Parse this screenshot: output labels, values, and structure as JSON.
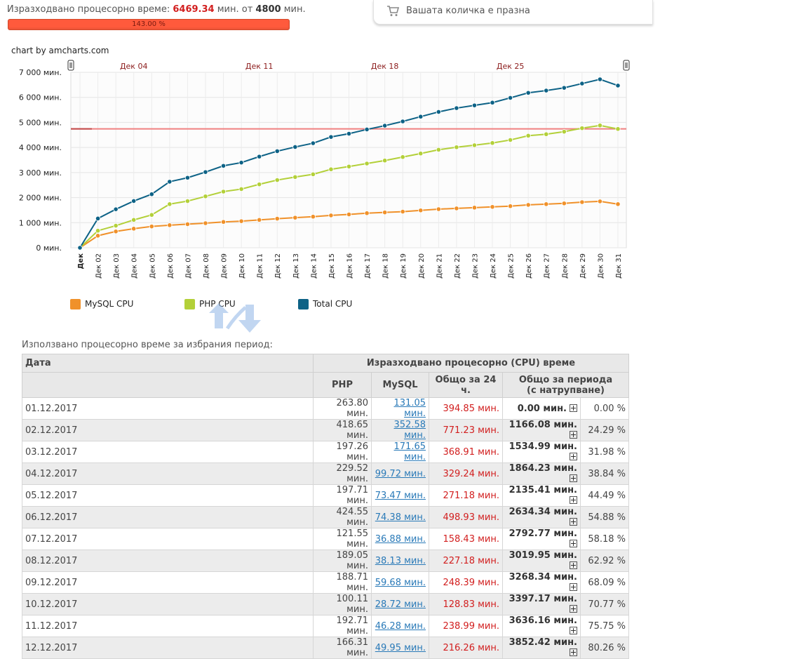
{
  "header": {
    "cpu_label": "Изразходвано процесорно време:",
    "cpu_used": "6469.34",
    "unit_from": "мин. от",
    "cpu_limit": "4800",
    "unit": "мин.",
    "progress_text": "143.00 %",
    "progress_value": 143.0
  },
  "cart": {
    "icon": "cart-icon",
    "text": "Вашата количка е празна"
  },
  "chart_credit": "chart by amcharts.com",
  "chart_data": {
    "type": "line",
    "x": [
      "Дек",
      "02",
      "03",
      "04",
      "05",
      "06",
      "07",
      "08",
      "09",
      "10",
      "11",
      "12",
      "13",
      "14",
      "15",
      "16",
      "17",
      "18",
      "19",
      "20",
      "21",
      "22",
      "23",
      "24",
      "25",
      "26",
      "27",
      "28",
      "29",
      "30",
      "31"
    ],
    "x_prefix": "Дек",
    "top_labels": [
      "Дек 04",
      "Дек 11",
      "Дек 18",
      "Дек 25"
    ],
    "y_ticks": [
      "0 мин.",
      "1 000 мин.",
      "2 000 мин.",
      "3 000 мин.",
      "4 000 мин.",
      "5 000 мин.",
      "6 000 мин.",
      "7 000 мин."
    ],
    "ylim": [
      0,
      7000
    ],
    "limit_line": 4800,
    "grid": true,
    "legend_position": "bottom",
    "colors": {
      "mysql": "#f0912a",
      "php": "#b3d039",
      "total": "#0d6286",
      "limit": "#f08080"
    },
    "series": [
      {
        "name": "MySQL CPU",
        "key": "mysql",
        "values": [
          0,
          480,
          650,
          760,
          850,
          900,
          940,
          980,
          1030,
          1060,
          1110,
          1160,
          1200,
          1240,
          1290,
          1330,
          1380,
          1410,
          1440,
          1490,
          1540,
          1570,
          1600,
          1630,
          1660,
          1710,
          1740,
          1770,
          1820,
          1850,
          1740
        ]
      },
      {
        "name": "PHP CPU",
        "key": "php",
        "values": [
          0,
          680,
          880,
          1110,
          1310,
          1740,
          1860,
          2050,
          2240,
          2340,
          2530,
          2700,
          2820,
          2930,
          3130,
          3240,
          3360,
          3480,
          3620,
          3760,
          3910,
          4010,
          4090,
          4180,
          4300,
          4470,
          4530,
          4630,
          4770,
          4880,
          4740
        ]
      },
      {
        "name": "Total CPU",
        "key": "total",
        "values": [
          0,
          1166.08,
          1534.99,
          1864.23,
          2135.41,
          2634.34,
          2792.77,
          3019.95,
          3268.34,
          3397.17,
          3636.16,
          3852.42,
          4020,
          4170,
          4420,
          4550,
          4720,
          4870,
          5040,
          5230,
          5420,
          5570,
          5680,
          5790,
          5980,
          6180,
          6270,
          6380,
          6550,
          6720,
          6469.34
        ]
      }
    ]
  },
  "legend": [
    {
      "label": "MySQL CPU",
      "color": "#f0912a"
    },
    {
      "label": "PHP CPU",
      "color": "#b3d039"
    },
    {
      "label": "Total CPU",
      "color": "#0d6286"
    }
  ],
  "period_label": "Използвано процесорно време за избрания период:",
  "table": {
    "col_date": "Дата",
    "col_group": "Изразходвано процесорно (CPU) време",
    "col_php": "PHP",
    "col_mysql": "MySQL",
    "col_24h": "Общо за 24 ч.",
    "col_period_line1": "Общо за периода",
    "col_period_line2": "(с натрупване)",
    "rows": [
      {
        "date": "01.12.2017",
        "php": "263.80 мин.",
        "mysql": "131.05 мин.",
        "day": "394.85 мин.",
        "total": "0.00 мин.",
        "pct": "0.00 %"
      },
      {
        "date": "02.12.2017",
        "php": "418.65 мин.",
        "mysql": "352.58 мин.",
        "day": "771.23 мин.",
        "total": "1166.08 мин.",
        "pct": "24.29 %"
      },
      {
        "date": "03.12.2017",
        "php": "197.26 мин.",
        "mysql": "171.65 мин.",
        "day": "368.91 мин.",
        "total": "1534.99 мин.",
        "pct": "31.98 %"
      },
      {
        "date": "04.12.2017",
        "php": "229.52 мин.",
        "mysql": "99.72 мин.",
        "day": "329.24 мин.",
        "total": "1864.23 мин.",
        "pct": "38.84 %"
      },
      {
        "date": "05.12.2017",
        "php": "197.71 мин.",
        "mysql": "73.47 мин.",
        "day": "271.18 мин.",
        "total": "2135.41 мин.",
        "pct": "44.49 %"
      },
      {
        "date": "06.12.2017",
        "php": "424.55 мин.",
        "mysql": "74.38 мин.",
        "day": "498.93 мин.",
        "total": "2634.34 мин.",
        "pct": "54.88 %"
      },
      {
        "date": "07.12.2017",
        "php": "121.55 мин.",
        "mysql": "36.88 мин.",
        "day": "158.43 мин.",
        "total": "2792.77 мин.",
        "pct": "58.18 %"
      },
      {
        "date": "08.12.2017",
        "php": "189.05 мин.",
        "mysql": "38.13 мин.",
        "day": "227.18 мин.",
        "total": "3019.95 мин.",
        "pct": "62.92 %"
      },
      {
        "date": "09.12.2017",
        "php": "188.71 мин.",
        "mysql": "59.68 мин.",
        "day": "248.39 мин.",
        "total": "3268.34 мин.",
        "pct": "68.09 %"
      },
      {
        "date": "10.12.2017",
        "php": "100.11 мин.",
        "mysql": "28.72 мин.",
        "day": "128.83 мин.",
        "total": "3397.17 мин.",
        "pct": "70.77 %"
      },
      {
        "date": "11.12.2017",
        "php": "192.71 мин.",
        "mysql": "46.28 мин.",
        "day": "238.99 мин.",
        "total": "3636.16 мин.",
        "pct": "75.75 %"
      },
      {
        "date": "12.12.2017",
        "php": "166.31 мин.",
        "mysql": "49.95 мин.",
        "day": "216.26 мин.",
        "total": "3852.42 мин.",
        "pct": "80.26 %"
      }
    ]
  }
}
